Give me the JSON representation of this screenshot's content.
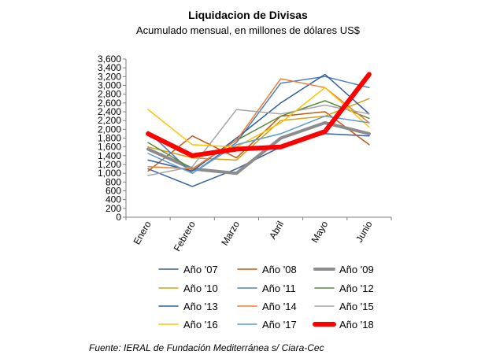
{
  "chart_data": {
    "type": "line",
    "title": "Liquidacion de Divisas",
    "subtitle": "Acumulado mensual, en millones de dólares US$",
    "categories": [
      "Enero",
      "Febrero",
      "Marzo",
      "Abril",
      "Mayo",
      "Junio"
    ],
    "ylim": [
      0,
      3600
    ],
    "yticks": [
      0,
      200,
      400,
      600,
      800,
      1000,
      1200,
      1400,
      1600,
      1800,
      2000,
      2200,
      2400,
      2600,
      2800,
      3000,
      3200,
      3400,
      3600
    ],
    "ytick_labels": [
      "0",
      "200",
      "400",
      "600",
      "800",
      "1,000",
      "1,200",
      "1,400",
      "1,600",
      "1,800",
      "2,000",
      "2,200",
      "2,400",
      "2,600",
      "2,800",
      "3,000",
      "3,200",
      "3,400",
      "3,600"
    ],
    "series": [
      {
        "name": "Año '07",
        "color": "#3a5f9e",
        "values": [
          1100,
          700,
          1100,
          1600,
          1900,
          1850
        ]
      },
      {
        "name": "Año '08",
        "color": "#c55a11",
        "values": [
          1050,
          1850,
          1350,
          2300,
          2400,
          1650
        ]
      },
      {
        "name": "Año '09",
        "color": "#8c8c8c",
        "values": [
          1550,
          1100,
          1000,
          1800,
          2150,
          1900
        ]
      },
      {
        "name": "Año '10",
        "color": "#d4a017",
        "values": [
          1600,
          1350,
          1300,
          2200,
          2300,
          2700
        ]
      },
      {
        "name": "Año '11",
        "color": "#4a7ebb",
        "values": [
          1950,
          1000,
          1700,
          3050,
          3200,
          2950
        ]
      },
      {
        "name": "Año '12",
        "color": "#5a8a3a",
        "values": [
          1700,
          1100,
          1750,
          2300,
          2650,
          2250
        ]
      },
      {
        "name": "Año '13",
        "color": "#2e5d9a",
        "values": [
          1300,
          1050,
          1800,
          2600,
          3250,
          2350
        ]
      },
      {
        "name": "Año '14",
        "color": "#ed7d31",
        "values": [
          1150,
          1100,
          1750,
          3150,
          2950,
          2150
        ]
      },
      {
        "name": "Año '15",
        "color": "#a5a5a5",
        "values": [
          950,
          1150,
          2450,
          2350,
          2550,
          2350
        ]
      },
      {
        "name": "Año '16",
        "color": "#ffc000",
        "values": [
          2450,
          1650,
          1600,
          2150,
          2950,
          2050
        ]
      },
      {
        "name": "Año '17",
        "color": "#5b9bd5",
        "values": [
          1450,
          1000,
          1650,
          1900,
          2300,
          2150
        ]
      },
      {
        "name": "Año '18",
        "color": "#ff0000",
        "values": [
          1900,
          1400,
          1550,
          1600,
          1950,
          3250
        ]
      }
    ]
  },
  "source": "Fuente: IERAL de Fundación Mediterránea s/ Ciara-Cec"
}
